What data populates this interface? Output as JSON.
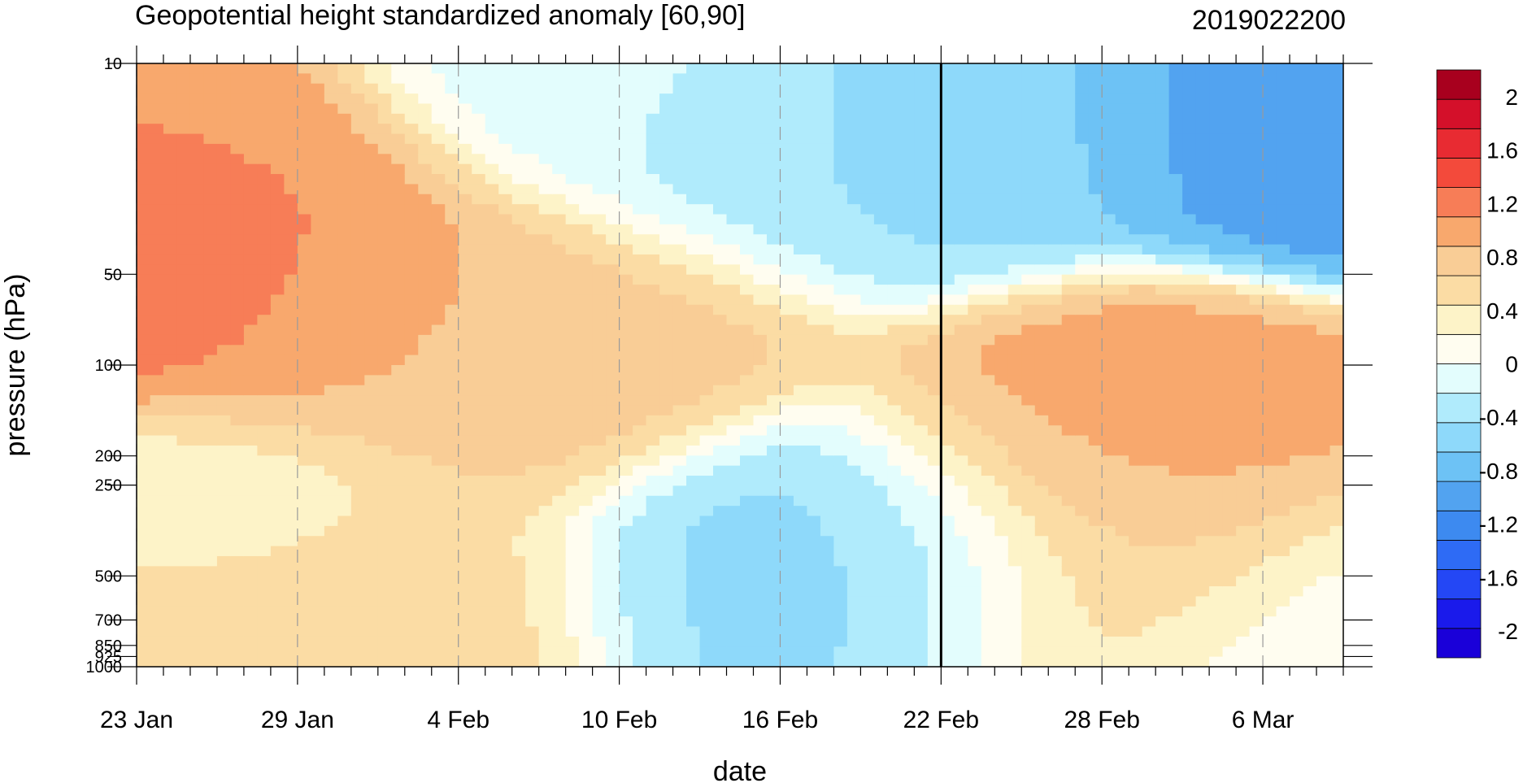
{
  "chart_data": {
    "type": "heatmap",
    "title": "Geopotential height standardized anomaly [60,90]",
    "run_label": "2019022200",
    "xlabel": "date",
    "ylabel": "pressure (hPa)",
    "x_ticks": [
      "23 Jan",
      "29 Jan",
      "4 Feb",
      "10 Feb",
      "16 Feb",
      "22 Feb",
      "28 Feb",
      "6 Mar"
    ],
    "x_tick_days": [
      0,
      6,
      12,
      18,
      24,
      30,
      36,
      42
    ],
    "x_range_days": [
      0,
      45
    ],
    "x_origin": "23 Jan",
    "y_ticks": [
      10,
      50,
      100,
      200,
      250,
      500,
      700,
      850,
      925,
      1000
    ],
    "y_tick_labels": [
      "10",
      "50",
      "100",
      "200",
      "250",
      "500",
      "700",
      "850",
      "925",
      "1000"
    ],
    "y_scale": "log",
    "y_reversed": true,
    "initialization_day": 30,
    "colorbar": {
      "levels": [
        -2.2,
        -2,
        -1.8,
        -1.6,
        -1.4,
        -1.2,
        -1,
        -0.8,
        -0.6,
        -0.4,
        -0.2,
        0,
        0.2,
        0.4,
        0.6,
        0.8,
        1,
        1.2,
        1.4,
        1.6,
        1.8,
        2,
        2.2
      ],
      "tick_labels": [
        "-2",
        "-1.6",
        "-1.2",
        "-0.8",
        "-0.4",
        "0",
        "0.4",
        "0.8",
        "1.2",
        "1.6",
        "2"
      ],
      "tick_values": [
        -2,
        -1.6,
        -1.2,
        -0.8,
        -0.4,
        0,
        0.4,
        0.8,
        1.2,
        1.6,
        2
      ],
      "colors": [
        "#1a00d9",
        "#1a1aeb",
        "#2447f5",
        "#2e6bf5",
        "#3d8af0",
        "#52a3f0",
        "#6dc2f5",
        "#8ed9fa",
        "#b0ebfc",
        "#e3fdfd",
        "#fffdf0",
        "#fdf3c8",
        "#fbdca4",
        "#f9cd96",
        "#f8a86d",
        "#f77d57",
        "#f34a3b",
        "#e82b32",
        "#d4102a",
        "#a8001e"
      ]
    },
    "anomaly_pattern": [
      {
        "day": 0.5,
        "p": 50,
        "value": 1.05
      },
      {
        "day": 2,
        "p": 30,
        "value": 0.75
      },
      {
        "day": 6,
        "p": 60,
        "value": 0.75
      },
      {
        "day": 12,
        "p": 100,
        "value": 0.55
      },
      {
        "day": 16,
        "p": 80,
        "value": 0.5
      },
      {
        "day": 3,
        "p": 600,
        "value": 0.45
      },
      {
        "day": 9,
        "p": 600,
        "value": 0.35
      },
      {
        "day": 19,
        "p": 12,
        "value": -0.3
      },
      {
        "day": 25,
        "p": 20,
        "value": -0.6
      },
      {
        "day": 30,
        "p": 12,
        "value": -0.75
      },
      {
        "day": 44,
        "p": 12,
        "value": -1.1
      },
      {
        "day": 25,
        "p": 500,
        "value": -0.6
      },
      {
        "day": 27,
        "p": 450,
        "value": -0.75
      },
      {
        "day": 3,
        "p": 350,
        "value": -0.1
      },
      {
        "day": 36,
        "p": 200,
        "value": 0.7
      },
      {
        "day": 36,
        "p": 500,
        "value": 0.45
      },
      {
        "day": 44,
        "p": 900,
        "value": -0.2
      }
    ]
  }
}
